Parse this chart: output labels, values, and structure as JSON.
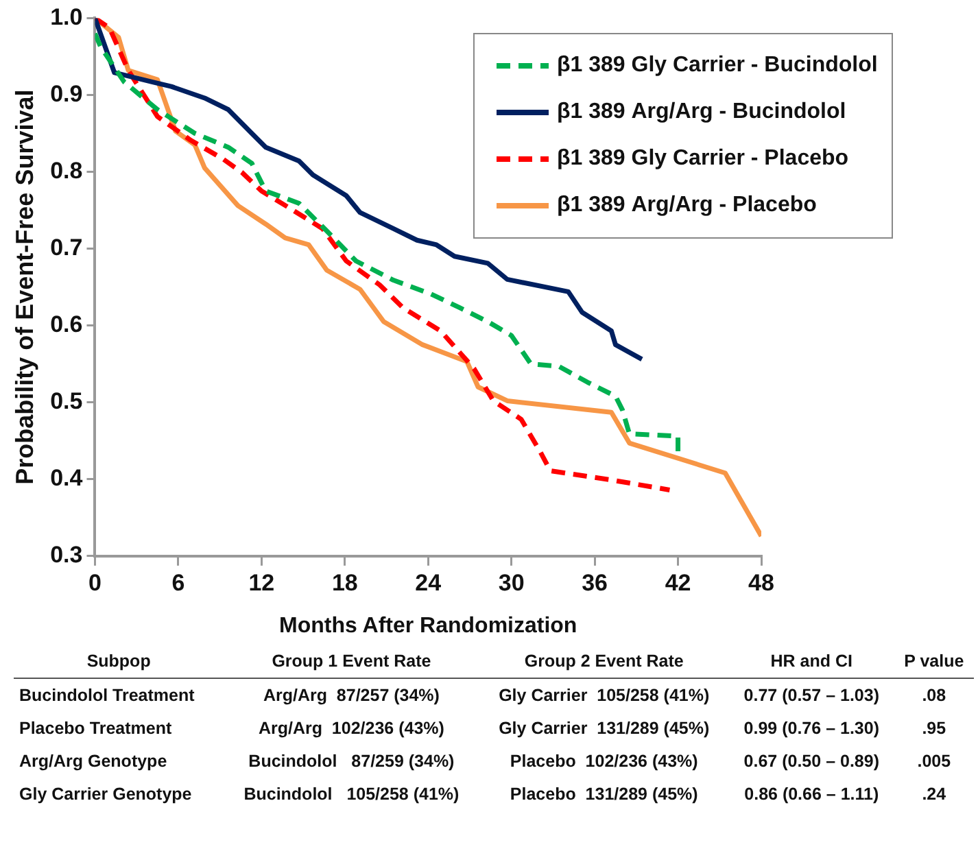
{
  "chart_data": {
    "type": "line",
    "xlabel": "Months After Randomization",
    "ylabel": "Probability of Event-Free Survival",
    "xlim": [
      0,
      48
    ],
    "xticks": [
      0,
      6,
      12,
      18,
      24,
      30,
      36,
      42,
      48
    ],
    "ylim": [
      0.3,
      1.0
    ],
    "yticks": [
      {
        "value": 0.3,
        "label": "0.3"
      },
      {
        "value": 0.4,
        "label": "0.4"
      },
      {
        "value": 0.5,
        "label": "0.5"
      },
      {
        "value": 0.6,
        "label": "0.6"
      },
      {
        "value": 0.7,
        "label": "0.7"
      },
      {
        "value": 0.8,
        "label": "0.8"
      },
      {
        "value": 0.9,
        "label": "0.9"
      },
      {
        "value": 1.0,
        "label": "1.0"
      }
    ],
    "grid": false,
    "legend": "top right",
    "marker": "none",
    "series": [
      {
        "name": "β1 389 Gly Carrier - Bucindolol",
        "color": "#00b050",
        "line_style": "dashed",
        "x": [
          0,
          0.4,
          2.1,
          4.5,
          7.2,
          9.6,
          11.3,
          12.3,
          14.7,
          16.7,
          18.8,
          21.5,
          24.2,
          26.3,
          28.3,
          30,
          31.4,
          33.4,
          35.5,
          37.5,
          38,
          38.5,
          42,
          42
        ],
        "values": [
          0.98,
          0.963,
          0.917,
          0.881,
          0.85,
          0.832,
          0.811,
          0.775,
          0.759,
          0.723,
          0.684,
          0.659,
          0.641,
          0.623,
          0.605,
          0.587,
          0.55,
          0.547,
          0.526,
          0.508,
          0.49,
          0.459,
          0.456,
          0.435
        ]
      },
      {
        "name": "β1 389 Arg/Arg - Bucindolol",
        "color": "#002060",
        "line_style": "solid",
        "x": [
          0,
          1.4,
          4.1,
          5.5,
          7.9,
          9.6,
          11.3,
          12.3,
          14.7,
          15.7,
          18.1,
          19.1,
          21.5,
          23.2,
          24.6,
          25.9,
          28.3,
          29.7,
          34.1,
          35.1,
          37.2,
          37.5,
          39.4
        ],
        "values": [
          1.0,
          0.929,
          0.917,
          0.911,
          0.896,
          0.881,
          0.85,
          0.832,
          0.814,
          0.796,
          0.769,
          0.747,
          0.726,
          0.711,
          0.705,
          0.69,
          0.681,
          0.66,
          0.644,
          0.617,
          0.593,
          0.575,
          0.556
        ]
      },
      {
        "name": "β1 389 Gly Carrier - Placebo",
        "color": "#ff0000",
        "line_style": "dashed",
        "x": [
          0,
          1.05,
          2.4,
          4.5,
          6.9,
          9.2,
          10.6,
          12,
          14,
          16.4,
          18.1,
          20.5,
          22.2,
          24.9,
          27.3,
          28.7,
          30.7,
          32.1,
          32.8,
          37.2,
          41.4
        ],
        "values": [
          1.0,
          0.987,
          0.932,
          0.872,
          0.841,
          0.817,
          0.799,
          0.775,
          0.753,
          0.726,
          0.684,
          0.653,
          0.623,
          0.593,
          0.544,
          0.502,
          0.478,
          0.435,
          0.411,
          0.399,
          0.386
        ]
      },
      {
        "name": "β1 389 Arg/Arg - Placebo",
        "color": "#f79646",
        "line_style": "solid",
        "x": [
          0,
          1.7,
          2.4,
          4.5,
          5.8,
          7.2,
          7.9,
          10.3,
          12.3,
          13.7,
          15.4,
          16.7,
          19.1,
          20.8,
          23.6,
          26.8,
          27.6,
          29.7,
          37.2,
          38.5,
          45.4,
          48
        ],
        "values": [
          1.0,
          0.975,
          0.932,
          0.92,
          0.853,
          0.835,
          0.805,
          0.756,
          0.732,
          0.714,
          0.705,
          0.672,
          0.647,
          0.605,
          0.575,
          0.553,
          0.52,
          0.502,
          0.487,
          0.447,
          0.408,
          0.326
        ]
      }
    ],
    "annotations": [
      "Subpop\tGroup 1 Event Rate\tGroup 2 Event Rate\tHR and CI\tP value",
      "Bucindolol Treatment\tArg/Arg  87/257 (34%)\tGly Carrier  105/258 (41%)\t0.77 (0.57 – 1.03)\t.08",
      "Placebo Treatment\tArg/Arg  102/236 (43%)\tGly Carrier  131/289 (45%)\t0.99 (0.76 – 1.30)\t.95",
      "Arg/Arg Genotype\tBucindolol   87/259 (34%)\tPlacebo  102/236 (43%)\t0.67 (0.50 – 0.89)\t.005",
      "Gly Carrier Genotype\tBucindolol   105/258 (41%)\tPlacebo  131/289 (45%)\t0.86 (0.66 – 1.11)\t.24"
    ]
  }
}
